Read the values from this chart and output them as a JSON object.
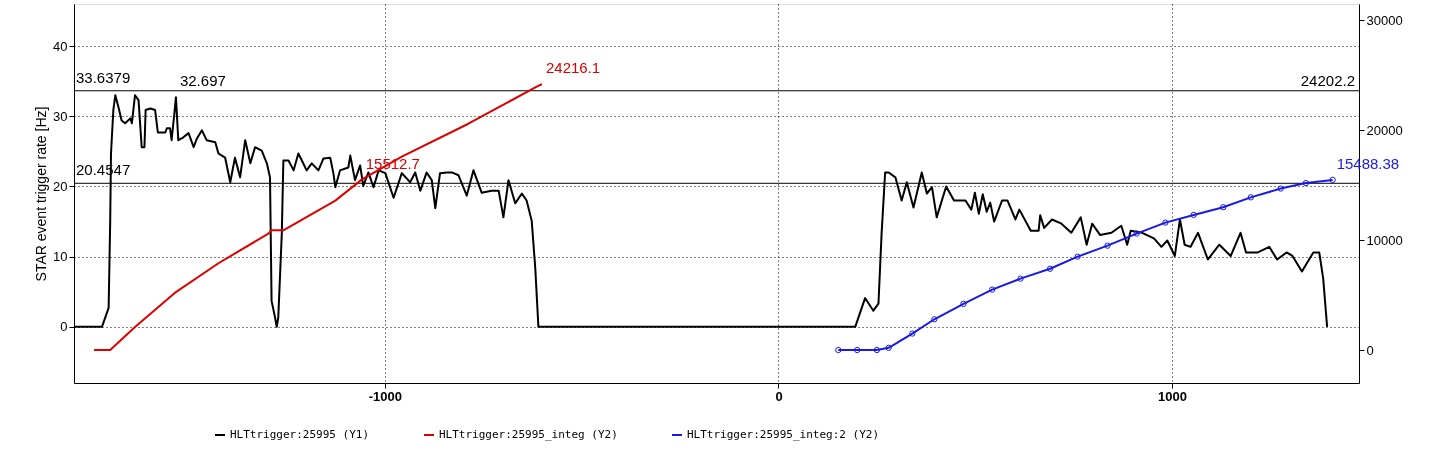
{
  "chart_data": {
    "type": "line",
    "ylabel": "STAR event trigger rate [Hz]",
    "xlim": [
      -1790,
      1475
    ],
    "xticks": [
      -1000,
      0,
      1000
    ],
    "ylim": [
      -8,
      46
    ],
    "yticks": [
      0,
      10,
      20,
      30,
      40
    ],
    "y2lim": [
      -3000,
      31500
    ],
    "y2ticks": [
      0,
      10000,
      20000,
      30000
    ],
    "grid": true,
    "legend": "bottom",
    "ref_lines": [
      {
        "axis": "y",
        "value": 33.6379,
        "label": "33.6379",
        "color": "#000000"
      },
      {
        "axis": "y",
        "value": 20.4547,
        "label": "20.4547",
        "color": "#000000"
      }
    ],
    "annotations": [
      {
        "text": "24202.2",
        "x": 1475,
        "y": 33.6379
      }
    ],
    "series": [
      {
        "name": "HLTtrigger:25995 (Y1)",
        "color": "#000000",
        "axis": "y",
        "x": [
          -1790,
          -1719,
          -1702,
          -1698,
          -1696,
          -1690,
          -1685,
          -1677,
          -1669,
          -1660,
          -1647,
          -1643,
          -1635,
          -1626,
          -1618,
          -1611,
          -1608,
          -1596,
          -1584,
          -1577,
          -1558,
          -1554,
          -1546,
          -1542,
          -1535,
          -1531,
          -1525,
          -1512,
          -1499,
          -1486,
          -1478,
          -1465,
          -1453,
          -1431,
          -1423,
          -1406,
          -1393,
          -1381,
          -1368,
          -1355,
          -1342,
          -1330,
          -1313,
          -1300,
          -1292,
          -1288,
          -1279,
          -1275,
          -1271,
          -1262,
          -1258,
          -1245,
          -1232,
          -1220,
          -1211,
          -1199,
          -1186,
          -1169,
          -1156,
          -1139,
          -1131,
          -1126,
          -1114,
          -1093,
          -1088,
          -1076,
          -1063,
          -1055,
          -1042,
          -1029,
          -1016,
          -999,
          -978,
          -957,
          -936,
          -923,
          -910,
          -894,
          -881,
          -872,
          -860,
          -843,
          -830,
          -813,
          -792,
          -775,
          -754,
          -729,
          -711,
          -699,
          -686,
          -669,
          -652,
          -640,
          -627,
          -618,
          -610,
          195,
          220,
          241,
          254,
          262,
          271,
          280,
          297,
          313,
          326,
          343,
          364,
          377,
          390,
          402,
          426,
          446,
          475,
          490,
          499,
          509,
          519,
          529,
          538,
          548,
          568,
          582,
          602,
          612,
          641,
          661,
          665,
          675,
          695,
          719,
          744,
          768,
          783,
          797,
          817,
          846,
          871,
          886,
          895,
          924,
          954,
          973,
          988,
          1007,
          1020,
          1032,
          1047,
          1066,
          1091,
          1120,
          1149,
          1174,
          1188,
          1218,
          1247,
          1267,
          1291,
          1306,
          1330,
          1345,
          1359,
          1374,
          1384,
          1394
        ],
        "values": [
          0,
          0,
          2.7,
          15.1,
          24.7,
          30.9,
          33,
          31.3,
          29.4,
          29,
          29.7,
          29,
          33,
          32.3,
          25.6,
          25.6,
          30.9,
          31.1,
          30.9,
          27.7,
          27.7,
          28.3,
          28.3,
          26.6,
          30.4,
          32.697,
          26.6,
          27,
          27.6,
          25.6,
          26.8,
          28,
          26.6,
          26.3,
          24.7,
          24.1,
          20.6,
          24.1,
          21.3,
          26.6,
          23.3,
          25.6,
          25.1,
          23.3,
          21.3,
          3.7,
          1.3,
          0,
          1.3,
          13.3,
          23.7,
          23.7,
          22.3,
          24.7,
          23.7,
          22.3,
          23.3,
          22.3,
          24,
          24.1,
          21.9,
          19.9,
          22.3,
          22.7,
          24.4,
          20.9,
          23,
          20.1,
          22,
          19.9,
          22.3,
          21.9,
          18.4,
          21.9,
          20.6,
          22,
          19.4,
          22,
          20.9,
          16.9,
          21.9,
          22,
          22,
          21.6,
          18.7,
          22.3,
          19.1,
          19.4,
          19.4,
          15.6,
          20.9,
          17.6,
          19,
          18,
          15.1,
          8.4,
          0,
          0,
          4.1,
          2.3,
          3.3,
          13.3,
          22,
          22,
          21.3,
          18,
          20.6,
          17,
          22,
          19,
          19.9,
          15.6,
          20,
          18,
          18,
          16.7,
          19.1,
          16.1,
          18.9,
          16.4,
          17.7,
          15,
          18,
          18,
          15.3,
          16.7,
          13.7,
          13.7,
          15.9,
          14.1,
          15.3,
          14.7,
          13.4,
          15.6,
          11.7,
          14.7,
          13.1,
          13.4,
          14.4,
          11.7,
          13.7,
          13.4,
          12.6,
          11.4,
          12.3,
          10.1,
          15.3,
          11.7,
          11.4,
          13.4,
          9.6,
          11.7,
          10.1,
          13.4,
          10.6,
          10.6,
          11.4,
          9.6,
          10.6,
          10.1,
          7.9,
          9.3,
          10.6,
          10.6,
          6.9,
          0
        ],
        "value_labels": [
          null,
          null,
          null,
          null,
          null,
          null,
          null,
          null,
          null,
          null,
          null,
          null,
          null,
          null,
          null,
          null,
          null,
          null,
          null,
          null,
          null,
          null,
          null,
          null,
          null,
          "32.697",
          null,
          null,
          null,
          null,
          null,
          null,
          null,
          null,
          null,
          null,
          null,
          null,
          null,
          null,
          null,
          null,
          null,
          null,
          null,
          null,
          null,
          null,
          null,
          null,
          null,
          null,
          null,
          null,
          null,
          null,
          null,
          null,
          null,
          null,
          null,
          null,
          null,
          null,
          null,
          null,
          null,
          null,
          null,
          null,
          null,
          null,
          null,
          null,
          null,
          null,
          null,
          null,
          null,
          null,
          null,
          null,
          null,
          null,
          null,
          null,
          null,
          null,
          null,
          null,
          null,
          null,
          null,
          null,
          null,
          null,
          null,
          null,
          null,
          null,
          null,
          null,
          null,
          null,
          null,
          null,
          null,
          null,
          null,
          null,
          null,
          null,
          null,
          null,
          null,
          null,
          null,
          null,
          null,
          null,
          null,
          null,
          null,
          null,
          null,
          null,
          null,
          null,
          null,
          null,
          null,
          null,
          null,
          null,
          null,
          null,
          null,
          null,
          null,
          null,
          null,
          null,
          null,
          null,
          null,
          null,
          null,
          null,
          null,
          null,
          null,
          null,
          null,
          null,
          null,
          null,
          null,
          null,
          null,
          null,
          null,
          null,
          null,
          null,
          null,
          null
        ]
      },
      {
        "name": "HLTtrigger:25995_integ (Y2)",
        "color": "#dd0000",
        "axis": "y2",
        "x": [
          -1739,
          -1698,
          -1635,
          -1534,
          -1423,
          -1296,
          -1288,
          -1258,
          -1126,
          -1059,
          -957,
          -788,
          -618,
          -601
        ],
        "values": [
          0,
          0,
          2100,
          5200,
          7900,
          10600,
          10900,
          10900,
          13600,
          15512.7,
          17600,
          20600,
          23900,
          24216.1
        ],
        "value_labels": [
          null,
          null,
          null,
          null,
          null,
          null,
          null,
          null,
          null,
          "15512.7",
          null,
          null,
          null,
          "24216.1"
        ]
      },
      {
        "name": "HLTtrigger:25995_integ:2 (Y2)",
        "color": "#1a1ae6",
        "axis": "y2",
        "marker": "circle",
        "x": [
          152,
          200,
          250,
          280,
          340,
          396,
          470,
          543,
          615,
          690,
          760,
          836,
          910,
          983,
          1055,
          1130,
          1200,
          1276,
          1340,
          1408
        ],
        "values": [
          0,
          0,
          0,
          200,
          1500,
          2800,
          4200,
          5500,
          6500,
          7400,
          8500,
          9500,
          10600,
          11600,
          12300,
          13000,
          13900,
          14700,
          15200,
          15488.38
        ],
        "value_labels": [
          null,
          null,
          null,
          null,
          null,
          null,
          null,
          null,
          null,
          null,
          null,
          null,
          null,
          null,
          null,
          null,
          null,
          null,
          null,
          "15488.38"
        ]
      }
    ]
  }
}
